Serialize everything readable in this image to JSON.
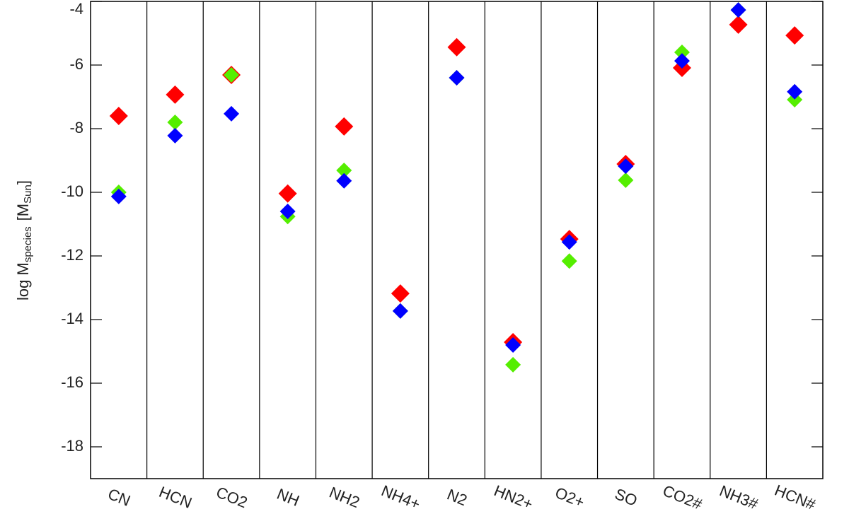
{
  "chart_data": {
    "type": "scatter",
    "ylabel": {
      "text": "log M",
      "sub": "species",
      "unit": "[M",
      "unit_sub": "Sun",
      "unit_end": "]"
    },
    "categories": [
      "CN",
      "HCN",
      "CO2",
      "NH",
      "NH2",
      "NH4+",
      "N2",
      "HN2+",
      "O2+",
      "SO",
      "CO2#",
      "NH3#",
      "HCN#"
    ],
    "series": [
      {
        "color": "#ff0000",
        "values": [
          -7.6,
          -6.93,
          -6.31,
          -10.04,
          -7.93,
          -13.18,
          -5.44,
          -14.71,
          -11.47,
          -9.11,
          -6.09,
          -4.73,
          -5.07
        ]
      },
      {
        "color": "#55ee00",
        "values": [
          -10.0,
          -7.8,
          -6.31,
          -10.76,
          -9.31,
          -13.73,
          -6.4,
          -15.42,
          -12.16,
          -9.62,
          -5.6,
          -4.27,
          -7.09
        ]
      },
      {
        "color": "#0000ff",
        "values": [
          -10.13,
          -8.22,
          -7.53,
          -10.6,
          -9.64,
          -13.73,
          -6.4,
          -14.8,
          -11.56,
          -9.18,
          -5.87,
          -4.27,
          -6.84
        ]
      }
    ],
    "ylim": [
      -19,
      -4
    ],
    "yticks": [
      -18,
      -16,
      -14,
      -12,
      -10,
      -8,
      -6,
      -4
    ]
  }
}
